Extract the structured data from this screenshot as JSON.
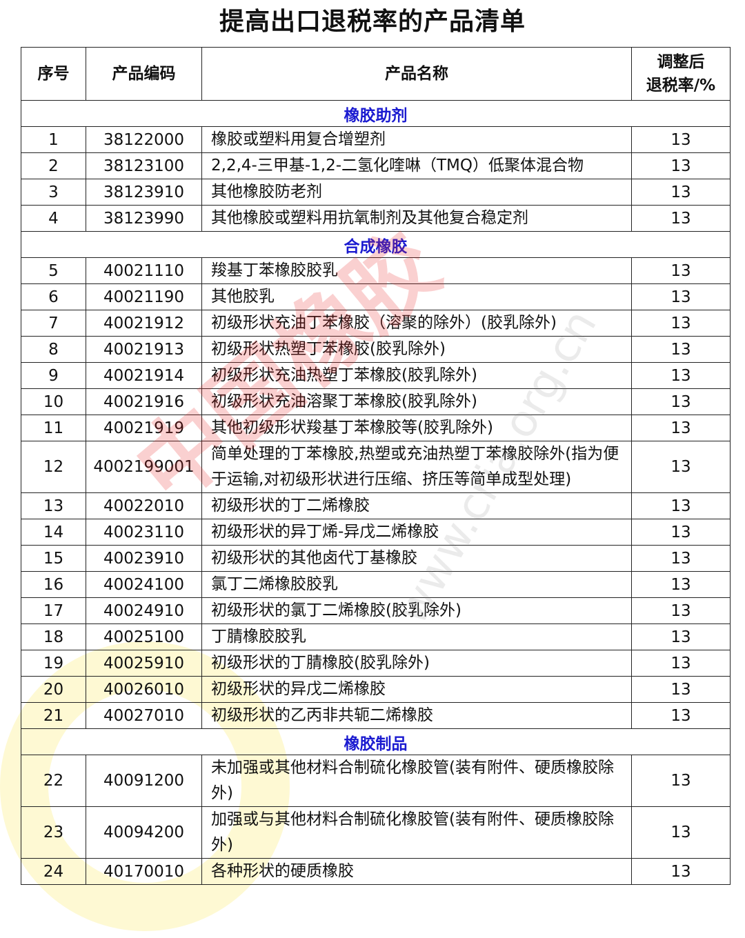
{
  "title": "提高出口退税率的产品清单",
  "headers": {
    "index": "序号",
    "code": "产品编码",
    "name": "产品名称",
    "rate_line1": "调整后",
    "rate_line2": "退税率/%"
  },
  "sections": [
    {
      "label": "橡胶助剂",
      "rows": [
        {
          "no": "1",
          "code": "38122000",
          "name": "橡胶或塑料用复合增塑剂",
          "rate": "13"
        },
        {
          "no": "2",
          "code": "38123100",
          "name": "2,2,4-三甲基-1,2-二氢化喹啉（TMQ）低聚体混合物",
          "rate": "13"
        },
        {
          "no": "3",
          "code": "38123910",
          "name": "其他橡胶防老剂",
          "rate": "13"
        },
        {
          "no": "4",
          "code": "38123990",
          "name": "其他橡胶或塑料用抗氧制剂及其他复合稳定剂",
          "rate": "13"
        }
      ]
    },
    {
      "label": "合成橡胶",
      "rows": [
        {
          "no": "5",
          "code": "40021110",
          "name": "羧基丁苯橡胶胶乳",
          "rate": "13"
        },
        {
          "no": "6",
          "code": "40021190",
          "name": "其他胶乳",
          "rate": "13"
        },
        {
          "no": "7",
          "code": "40021912",
          "name": "初级形状充油丁苯橡胶（溶聚的除外）(胶乳除外)",
          "rate": "13"
        },
        {
          "no": "8",
          "code": "40021913",
          "name": "初级形状热塑丁苯橡胶(胶乳除外)",
          "rate": "13"
        },
        {
          "no": "9",
          "code": "40021914",
          "name": "初级形状充油热塑丁苯橡胶(胶乳除外)",
          "rate": "13"
        },
        {
          "no": "10",
          "code": "40021916",
          "name": "初级形状充油溶聚丁苯橡胶(胶乳除外)",
          "rate": "13"
        },
        {
          "no": "11",
          "code": "40021919",
          "name": "其他初级形状羧基丁苯橡胶等(胶乳除外)",
          "rate": "13"
        },
        {
          "no": "12",
          "code": "4002199001",
          "name": "简单处理的丁苯橡胶,热塑或充油热塑丁苯橡胶除外(指为便于运输,对初级形状进行压缩、挤压等简单成型处理)",
          "rate": "13"
        },
        {
          "no": "13",
          "code": "40022010",
          "name": "初级形状的丁二烯橡胶",
          "rate": "13"
        },
        {
          "no": "14",
          "code": "40023110",
          "name": "初级形状的异丁烯-异戊二烯橡胶",
          "rate": "13"
        },
        {
          "no": "15",
          "code": "40023910",
          "name": "初级形状的其他卤代丁基橡胶",
          "rate": "13"
        },
        {
          "no": "16",
          "code": "40024100",
          "name": "氯丁二烯橡胶胶乳",
          "rate": "13"
        },
        {
          "no": "17",
          "code": "40024910",
          "name": "初级形状的氯丁二烯橡胶(胶乳除外)",
          "rate": "13"
        },
        {
          "no": "18",
          "code": "40025100",
          "name": "丁腈橡胶胶乳",
          "rate": "13"
        },
        {
          "no": "19",
          "code": "40025910",
          "name": "初级形状的丁腈橡胶(胶乳除外)",
          "rate": "13"
        },
        {
          "no": "20",
          "code": "40026010",
          "name": "初级形状的异戊二烯橡胶",
          "rate": "13"
        },
        {
          "no": "21",
          "code": "40027010",
          "name": "初级形状的乙丙非共轭二烯橡胶",
          "rate": "13"
        }
      ]
    },
    {
      "label": "橡胶制品",
      "rows": [
        {
          "no": "22",
          "code": "40091200",
          "name": "未加强或其他材料合制硫化橡胶管(装有附件、硬质橡胶除外)",
          "rate": "13"
        },
        {
          "no": "23",
          "code": "40094200",
          "name": "加强或与其他材料合制硫化橡胶管(装有附件、硬质橡胶除外)",
          "rate": "13"
        },
        {
          "no": "24",
          "code": "40170010",
          "name": "各种形状的硬质橡胶",
          "rate": "13"
        }
      ]
    }
  ],
  "watermark": {
    "logo_text": "中国橡胶",
    "url": "www.cria.org.cn"
  },
  "colors": {
    "section_label": "#1a1ad0"
  }
}
